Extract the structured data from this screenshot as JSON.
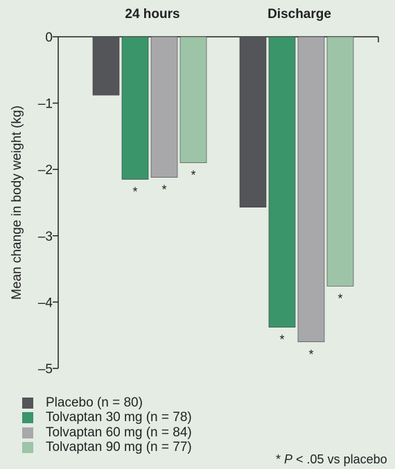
{
  "chart_data": {
    "type": "bar",
    "groups": [
      "24 hours",
      "Discharge"
    ],
    "ylabel": "Mean change in body weight (kg)",
    "ylim": [
      -5,
      0
    ],
    "yticks": [
      0,
      -1,
      -2,
      -3,
      -4,
      -5
    ],
    "ytick_labels": [
      "0",
      "–1",
      "–2",
      "–3",
      "–4",
      "–5"
    ],
    "series": [
      {
        "name": "Placebo (n = 80)",
        "color": "#545558",
        "values": [
          -0.88,
          -2.57
        ],
        "significant": [
          false,
          false
        ]
      },
      {
        "name": "Tolvaptan 30 mg (n = 78)",
        "color": "#3a956a",
        "values": [
          -2.15,
          -4.38
        ],
        "significant": [
          true,
          true
        ]
      },
      {
        "name": "Tolvaptan 60 mg (n = 84)",
        "color": "#a8a8ab",
        "values": [
          -2.12,
          -4.6
        ],
        "significant": [
          true,
          true
        ]
      },
      {
        "name": "Tolvaptan 90 mg (n = 77)",
        "color": "#9dc4a6",
        "values": [
          -1.9,
          -3.76
        ],
        "significant": [
          true,
          true
        ]
      }
    ],
    "significance_marker": "*",
    "footnote": {
      "prefix": "* ",
      "p": "P",
      "rest": " < .05 vs placebo"
    }
  }
}
